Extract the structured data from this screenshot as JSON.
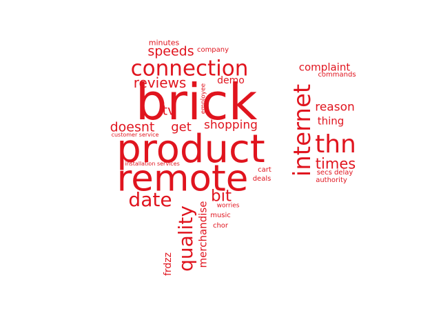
{
  "colors": {
    "background": "#ffffff",
    "word": "#e0141e"
  },
  "words": [
    {
      "id": "brick",
      "text": "brick"
    },
    {
      "id": "product",
      "text": "product"
    },
    {
      "id": "remote",
      "text": "remote"
    },
    {
      "id": "connection",
      "text": "connection"
    },
    {
      "id": "internet",
      "text": "internet"
    },
    {
      "id": "thn",
      "text": "thn"
    },
    {
      "id": "quality",
      "text": "quality"
    },
    {
      "id": "date",
      "text": "date"
    },
    {
      "id": "bit",
      "text": "bit"
    },
    {
      "id": "times",
      "text": "times"
    },
    {
      "id": "reviews",
      "text": "reviews"
    },
    {
      "id": "speeds",
      "text": "speeds"
    },
    {
      "id": "doesnt",
      "text": "doesnt"
    },
    {
      "id": "get",
      "text": "get"
    },
    {
      "id": "shopping",
      "text": "shopping"
    },
    {
      "id": "tv",
      "text": "tv"
    },
    {
      "id": "reason",
      "text": "reason"
    },
    {
      "id": "complaint",
      "text": "complaint"
    },
    {
      "id": "thing",
      "text": "thing"
    },
    {
      "id": "merchandise",
      "text": "merchandise"
    },
    {
      "id": "demo",
      "text": "demo"
    },
    {
      "id": "frdzz",
      "text": "frdzz"
    },
    {
      "id": "minutes",
      "text": "minutes"
    },
    {
      "id": "company",
      "text": "company"
    },
    {
      "id": "commands",
      "text": "commands"
    },
    {
      "id": "employee",
      "text": "employee"
    },
    {
      "id": "customer-service",
      "text": "customer service"
    },
    {
      "id": "installation-services",
      "text": "installation services"
    },
    {
      "id": "cart",
      "text": "cart"
    },
    {
      "id": "deals",
      "text": "deals"
    },
    {
      "id": "secs-delay",
      "text": "secs delay"
    },
    {
      "id": "authority",
      "text": "authority"
    },
    {
      "id": "worries",
      "text": "worries"
    },
    {
      "id": "music",
      "text": "music"
    },
    {
      "id": "chor",
      "text": "chor"
    }
  ]
}
